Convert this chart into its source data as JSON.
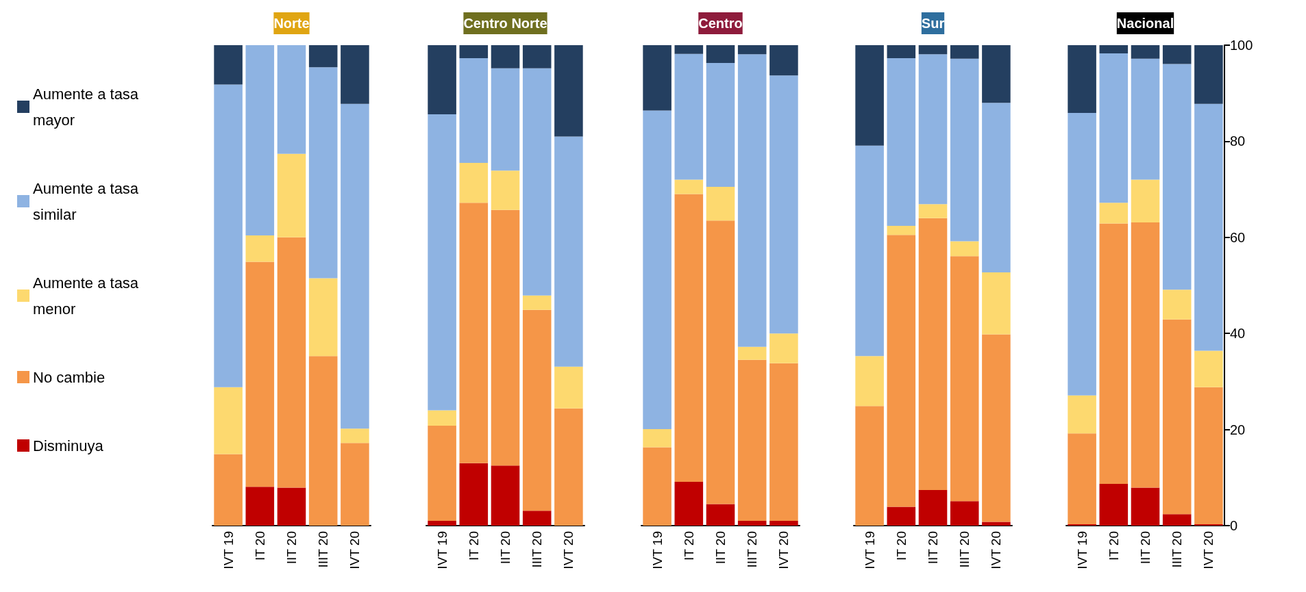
{
  "chart_data": [
    {
      "type": "bar",
      "stacked": true,
      "title": "Norte",
      "categories": [
        "IVT 19",
        "IT 20",
        "IIT 20",
        "IIIT 20",
        "IVT 20"
      ],
      "ylim": [
        0,
        100
      ],
      "yticks": [
        0,
        20,
        40,
        60,
        80,
        100
      ],
      "tick_labels": "x",
      "grid": false,
      "legend": "left",
      "series": [
        {
          "name": "Disminuya",
          "color": "#c00000",
          "values": [
            0,
            8.1,
            7.9,
            0,
            0
          ]
        },
        {
          "name": "No cambie",
          "color": "#f59648",
          "values": [
            14.9,
            46.8,
            52.1,
            35.3,
            17.2
          ]
        },
        {
          "name": "Aumente a tasa menor",
          "color": "#fdd96f",
          "values": [
            13.9,
            5.5,
            17.4,
            16.2,
            3
          ]
        },
        {
          "name": "Aumente a tasa similar",
          "color": "#8eb3e2",
          "values": [
            63,
            39.6,
            22.6,
            43.9,
            67.6
          ]
        },
        {
          "name": "Aumente a tasa mayor",
          "color": "#243f60",
          "values": [
            8.2,
            0,
            0,
            4.6,
            12.2
          ]
        }
      ]
    },
    {
      "type": "bar",
      "stacked": true,
      "title": "Centro Norte",
      "categories": [
        "IVT 19",
        "IT 20",
        "IIT 20",
        "IIIT 20",
        "IVT 20"
      ],
      "ylim": [
        0,
        100
      ],
      "yticks": [
        0,
        20,
        40,
        60,
        80,
        100
      ],
      "tick_labels": "x",
      "grid": false,
      "series": [
        {
          "color": "#c00000",
          "values": [
            1,
            13,
            12.5,
            3.1,
            0
          ]
        },
        {
          "color": "#f59648",
          "values": [
            19.8,
            54.2,
            53.2,
            41.8,
            24.4
          ]
        },
        {
          "color": "#fdd96f",
          "values": [
            3.2,
            8.3,
            8.2,
            3,
            8.7
          ]
        },
        {
          "color": "#8eb3e2",
          "values": [
            61.6,
            21.8,
            21.3,
            47.3,
            47.9
          ]
        },
        {
          "color": "#243f60",
          "values": [
            14.4,
            2.7,
            4.8,
            4.8,
            19
          ]
        }
      ]
    },
    {
      "type": "bar",
      "stacked": true,
      "title": "Centro",
      "categories": [
        "IVT 19",
        "IT 20",
        "IIT 20",
        "IIIT 20",
        "IVT 20"
      ],
      "ylim": [
        0,
        100
      ],
      "yticks": [
        0,
        20,
        40,
        60,
        80,
        100
      ],
      "tick_labels": "x",
      "grid": false,
      "series": [
        {
          "color": "#c00000",
          "values": [
            0,
            9.1,
            4.5,
            1,
            1
          ]
        },
        {
          "color": "#f59648",
          "values": [
            16.3,
            59.9,
            59,
            33.5,
            32.8
          ]
        },
        {
          "color": "#fdd96f",
          "values": [
            3.8,
            3,
            7,
            2.7,
            6.2
          ]
        },
        {
          "color": "#8eb3e2",
          "values": [
            66.3,
            26.2,
            25.8,
            60.9,
            53.7
          ]
        },
        {
          "color": "#243f60",
          "values": [
            13.6,
            1.8,
            3.7,
            1.9,
            6.3
          ]
        }
      ]
    },
    {
      "type": "bar",
      "stacked": true,
      "title": "Sur",
      "categories": [
        "IVT 19",
        "IT 20",
        "IIT 20",
        "IIIT 20",
        "IVT 20"
      ],
      "ylim": [
        0,
        100
      ],
      "yticks": [
        0,
        20,
        40,
        60,
        80,
        100
      ],
      "tick_labels": "x",
      "grid": false,
      "series": [
        {
          "color": "#c00000",
          "values": [
            0,
            3.9,
            7.4,
            5.1,
            0.8
          ]
        },
        {
          "color": "#f59648",
          "values": [
            24.9,
            56.6,
            56.6,
            51,
            39
          ]
        },
        {
          "color": "#fdd96f",
          "values": [
            10.4,
            1.9,
            2.9,
            3.1,
            12.9
          ]
        },
        {
          "color": "#8eb3e2",
          "values": [
            43.8,
            34.9,
            31.2,
            38,
            35.3
          ]
        },
        {
          "color": "#243f60",
          "values": [
            20.9,
            2.7,
            1.9,
            2.8,
            12
          ]
        }
      ]
    },
    {
      "type": "bar",
      "stacked": true,
      "title": "Nacional",
      "categories": [
        "IVT 19",
        "IT 20",
        "IIT 20",
        "IIIT 20",
        "IVT 20"
      ],
      "ylim": [
        0,
        100
      ],
      "yticks": [
        0,
        20,
        40,
        60,
        80,
        100
      ],
      "grid": false,
      "series": [
        {
          "color": "#c00000",
          "values": [
            0.3,
            8.7,
            7.9,
            2.4,
            0.3
          ]
        },
        {
          "color": "#f59648",
          "values": [
            18.9,
            54.2,
            55.2,
            40.5,
            28.5
          ]
        },
        {
          "color": "#fdd96f",
          "values": [
            7.9,
            4.3,
            8.9,
            6.2,
            7.6
          ]
        },
        {
          "color": "#8eb3e2",
          "values": [
            58.8,
            31.1,
            25.2,
            47,
            51.4
          ]
        },
        {
          "color": "#243f60",
          "values": [
            14.1,
            1.7,
            2.8,
            3.9,
            12.2
          ]
        }
      ]
    }
  ]
}
